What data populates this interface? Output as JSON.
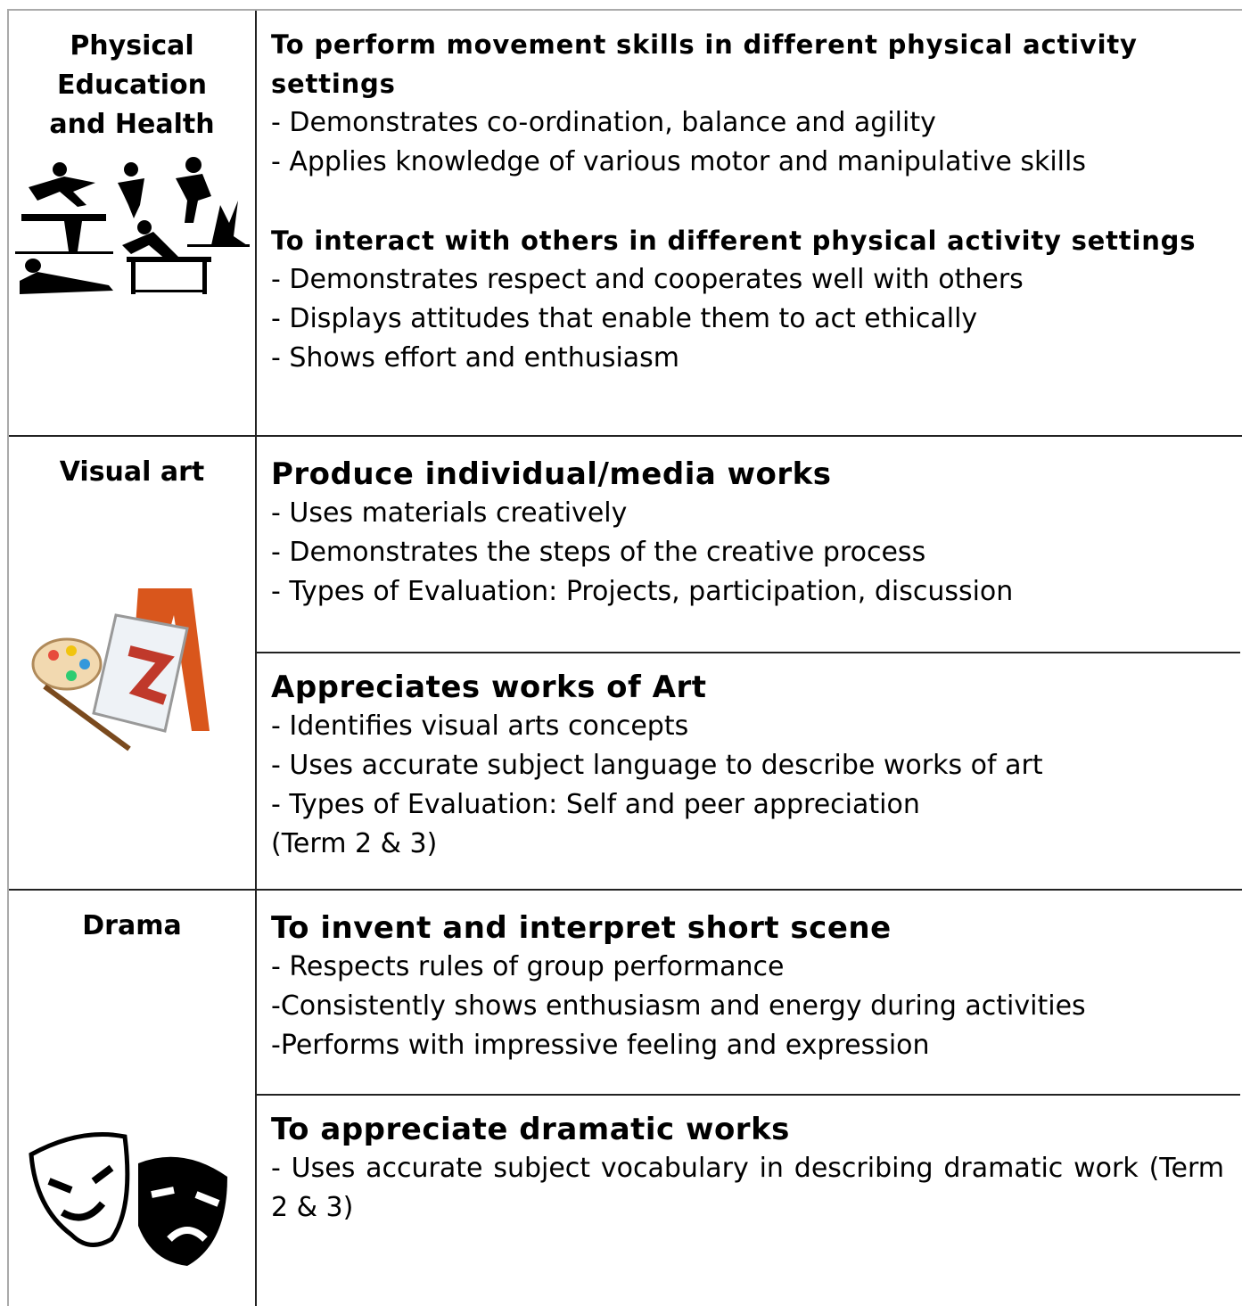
{
  "rows": [
    {
      "subject": "Physical Education and Health",
      "sections": [
        {
          "heading": "To perform movement skills in different physical activity settings",
          "items": [
            "- Demonstrates co-ordination, balance and agility",
            "- Applies knowledge of various motor and manipulative skills"
          ]
        },
        {
          "heading": "To interact with others in different physical activity settings",
          "items": [
            "- Demonstrates respect and cooperates well with others",
            "- Displays attitudes that enable them to act ethically",
            "- Shows effort and enthusiasm"
          ]
        }
      ]
    },
    {
      "subject": "Visual art",
      "sections": [
        {
          "heading": "Produce individual/media works",
          "items": [
            "- Uses materials creatively",
            "- Demonstrates the steps of the creative process",
            "- Types of Evaluation: Projects, participation, discussion"
          ]
        },
        {
          "heading": "Appreciates works of Art",
          "items": [
            "- Identifies visual arts concepts",
            "- Uses accurate subject language to describe works of art",
            "- Types of Evaluation: Self and peer appreciation",
            "(Term 2 & 3)"
          ]
        }
      ]
    },
    {
      "subject": "Drama",
      "sections": [
        {
          "heading": "To invent and interpret short scene",
          "items": [
            "- Respects rules of group performance",
            "-Consistently shows enthusiasm and energy during activities",
            "-Performs with impressive feeling and expression"
          ]
        },
        {
          "heading": "To appreciate dramatic works",
          "items": [
            "- Uses accurate subject vocabulary in describing dramatic work (Term 2 & 3)"
          ]
        }
      ]
    }
  ]
}
